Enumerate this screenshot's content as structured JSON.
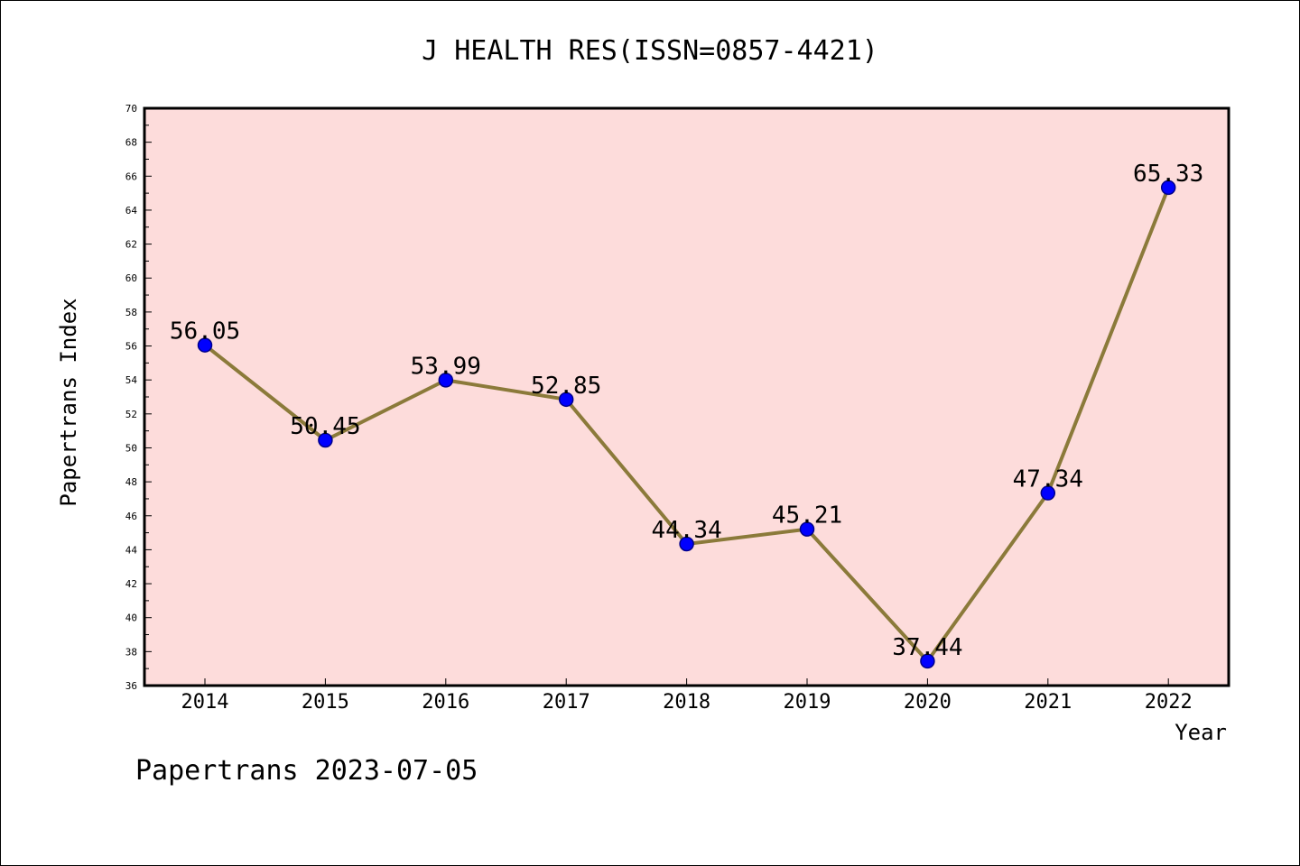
{
  "chart_data": {
    "type": "line",
    "title": "J HEALTH RES(ISSN=0857-4421)",
    "xlabel": "Year",
    "ylabel": "Papertrans Index",
    "x": [
      "2014",
      "2015",
      "2016",
      "2017",
      "2018",
      "2019",
      "2020",
      "2021",
      "2022"
    ],
    "values": [
      56.05,
      50.45,
      53.99,
      52.85,
      44.34,
      45.21,
      37.44,
      47.34,
      65.33
    ],
    "value_labels": [
      "56.05",
      "50.45",
      "53.99",
      "52.85",
      "44.34",
      "45.21",
      "37.44",
      "47.34",
      "65.33"
    ],
    "ylim": [
      36,
      70
    ],
    "yticks": [
      "36",
      "38",
      "40",
      "42",
      "44",
      "46",
      "48",
      "50",
      "52",
      "54",
      "56",
      "58",
      "60",
      "62",
      "64",
      "66",
      "68",
      "70"
    ],
    "grid": false,
    "colors": {
      "plot_background": "#fddcdb",
      "line": "#8b7a3a",
      "marker": "#0000ff",
      "marker_edge": "#00008b"
    }
  },
  "footer": "Papertrans 2023-07-05"
}
